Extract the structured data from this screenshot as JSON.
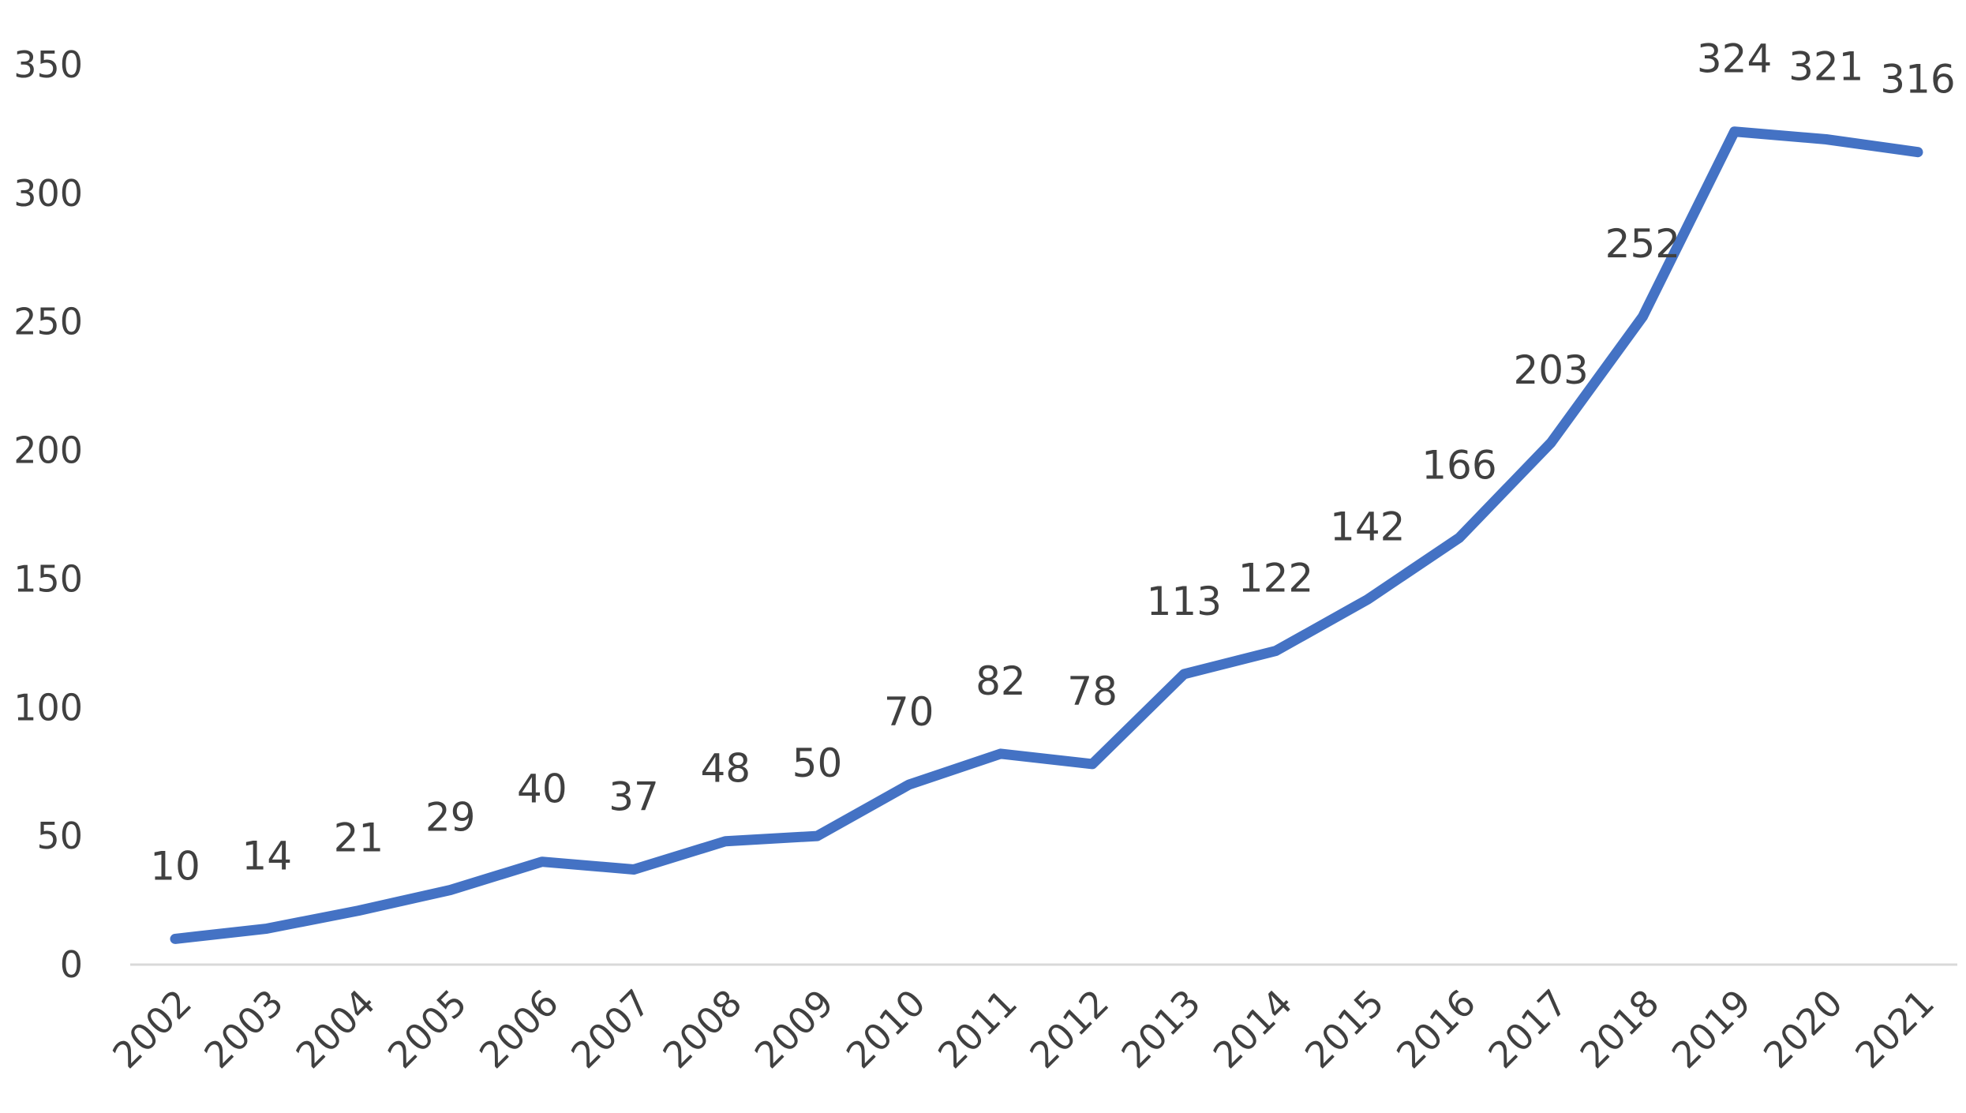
{
  "chart_data": {
    "type": "line",
    "title": "",
    "xlabel": "",
    "ylabel": "",
    "categories": [
      "2002",
      "2003",
      "2004",
      "2005",
      "2006",
      "2007",
      "2008",
      "2009",
      "2010",
      "2011",
      "2012",
      "2013",
      "2014",
      "2015",
      "2016",
      "2017",
      "2018",
      "2019",
      "2020",
      "2021"
    ],
    "series": [
      {
        "values": [
          10,
          14,
          21,
          29,
          40,
          37,
          48,
          50,
          70,
          82,
          78,
          113,
          122,
          142,
          166,
          203,
          252,
          324,
          321,
          316
        ],
        "color": "#4472C4"
      }
    ],
    "ylim": [
      0,
      350
    ],
    "yticks": [
      0,
      50,
      100,
      150,
      200,
      250,
      300,
      350
    ],
    "grid": false,
    "legend": "none",
    "data_labels": true
  },
  "colors": {
    "line": "#4472C4",
    "axis": "#D9D9D9",
    "text": "#404040"
  }
}
